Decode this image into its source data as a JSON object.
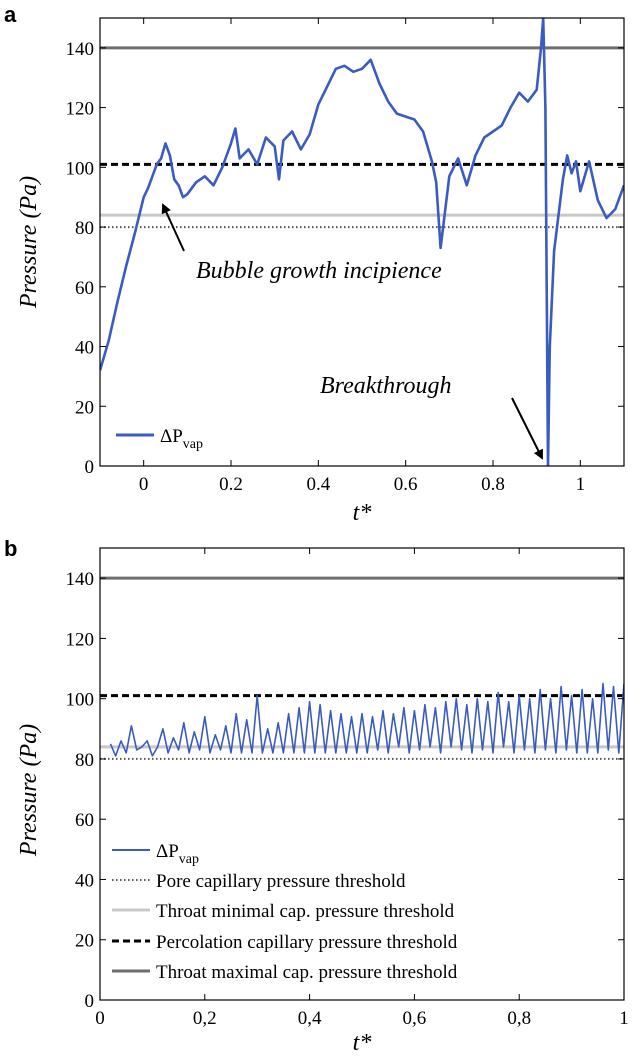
{
  "colors": {
    "series": "#3a5bbf",
    "pore": "#555555",
    "throat_min": "#c8c8c8",
    "percolation": "#000000",
    "throat_max": "#6e6e6e"
  },
  "chart_data": [
    {
      "panel": "a",
      "type": "line",
      "xlabel": "t*",
      "ylabel": "Pressure (Pa)",
      "xlim": [
        -0.1,
        1.1
      ],
      "ylim": [
        0,
        150
      ],
      "xticks": [
        0,
        0.2,
        0.4,
        0.6,
        0.8,
        1
      ],
      "xtick_labels": [
        "0",
        "0.2",
        "0.4",
        "0.6",
        "0.8",
        "1"
      ],
      "yticks": [
        0,
        20,
        40,
        60,
        80,
        100,
        120,
        140
      ],
      "ytick_labels": [
        "0",
        "20",
        "40",
        "60",
        "80",
        "100",
        "120",
        "140"
      ],
      "thresholds": {
        "pore": 80,
        "throat_min": 84,
        "percolation": 101,
        "throat_max": 140
      },
      "series": [
        {
          "name": "ΔP_vap",
          "x": [
            -0.1,
            -0.08,
            -0.06,
            -0.04,
            -0.02,
            0,
            0.01,
            0.02,
            0.03,
            0.04,
            0.05,
            0.06,
            0.07,
            0.08,
            0.09,
            0.1,
            0.12,
            0.14,
            0.16,
            0.18,
            0.2,
            0.21,
            0.22,
            0.24,
            0.26,
            0.28,
            0.3,
            0.31,
            0.32,
            0.34,
            0.36,
            0.38,
            0.4,
            0.42,
            0.44,
            0.46,
            0.48,
            0.5,
            0.52,
            0.54,
            0.56,
            0.58,
            0.6,
            0.62,
            0.64,
            0.66,
            0.67,
            0.68,
            0.7,
            0.72,
            0.74,
            0.76,
            0.78,
            0.8,
            0.82,
            0.84,
            0.86,
            0.88,
            0.9,
            0.91,
            0.915,
            0.92,
            0.923,
            0.926,
            0.93,
            0.94,
            0.95,
            0.96,
            0.97,
            0.98,
            0.99,
            1.0,
            1.02,
            1.04,
            1.06,
            1.08,
            1.1
          ],
          "y": [
            32,
            42,
            55,
            67,
            78,
            90,
            93,
            97,
            101,
            103,
            108,
            104,
            96,
            94,
            90,
            91,
            95,
            97,
            94,
            100,
            108,
            113,
            103,
            106,
            101,
            110,
            107,
            96,
            109,
            112,
            106,
            111,
            121,
            127,
            133,
            134,
            132,
            133,
            136,
            128,
            122,
            118,
            117,
            116,
            112,
            102,
            95,
            73,
            97,
            103,
            94,
            104,
            110,
            112,
            114,
            120,
            125,
            122,
            126,
            140,
            150,
            120,
            60,
            0,
            40,
            72,
            84,
            96,
            104,
            98,
            102,
            92,
            102,
            89,
            83,
            86,
            94
          ]
        }
      ],
      "annotations": [
        {
          "text": "Bubble growth incipience",
          "x": 0.3,
          "y": 66,
          "arrow_to": [
            0.02,
            90
          ]
        },
        {
          "text": "Breakthrough",
          "x": 0.7,
          "y": 26,
          "arrow_to": [
            0.92,
            2
          ]
        }
      ],
      "legend": {
        "position": "bottom-left",
        "entries": [
          "ΔP_vap"
        ]
      }
    },
    {
      "panel": "b",
      "type": "line",
      "xlabel": "t*",
      "ylabel": "Pressure (Pa)",
      "xlim": [
        0,
        1
      ],
      "ylim": [
        0,
        150
      ],
      "xticks": [
        0,
        0.2,
        0.4,
        0.6,
        0.8,
        1
      ],
      "xtick_labels": [
        "0",
        "0,2",
        "0,4",
        "0,6",
        "0,8",
        "1"
      ],
      "yticks": [
        0,
        20,
        40,
        60,
        80,
        100,
        120,
        140
      ],
      "ytick_labels": [
        "0",
        "20",
        "40",
        "60",
        "80",
        "100",
        "120",
        "140"
      ],
      "thresholds": {
        "pore": 80,
        "throat_min": 84,
        "percolation": 101,
        "throat_max": 140
      },
      "series": [
        {
          "name": "ΔP_vap",
          "x": [
            0.02,
            0.03,
            0.04,
            0.05,
            0.06,
            0.07,
            0.08,
            0.09,
            0.1,
            0.11,
            0.12,
            0.13,
            0.14,
            0.15,
            0.16,
            0.17,
            0.18,
            0.19,
            0.2,
            0.21,
            0.22,
            0.23,
            0.24,
            0.25,
            0.26,
            0.27,
            0.28,
            0.29,
            0.3,
            0.31,
            0.32,
            0.33,
            0.34,
            0.35,
            0.36,
            0.37,
            0.38,
            0.39,
            0.4,
            0.41,
            0.42,
            0.43,
            0.44,
            0.45,
            0.46,
            0.47,
            0.48,
            0.49,
            0.5,
            0.51,
            0.52,
            0.53,
            0.54,
            0.55,
            0.56,
            0.57,
            0.58,
            0.59,
            0.6,
            0.61,
            0.62,
            0.63,
            0.64,
            0.65,
            0.66,
            0.67,
            0.68,
            0.69,
            0.7,
            0.71,
            0.72,
            0.73,
            0.74,
            0.75,
            0.76,
            0.77,
            0.78,
            0.79,
            0.8,
            0.81,
            0.82,
            0.83,
            0.84,
            0.85,
            0.86,
            0.87,
            0.88,
            0.89,
            0.9,
            0.91,
            0.92,
            0.93,
            0.94,
            0.95,
            0.96,
            0.97,
            0.98,
            0.99,
            1.0
          ],
          "y": [
            85,
            81,
            86,
            82,
            91,
            83,
            84,
            86,
            81,
            84,
            90,
            82,
            87,
            83,
            92,
            82,
            89,
            83,
            94,
            82,
            88,
            83,
            91,
            82,
            95,
            82,
            93,
            82,
            101,
            82,
            90,
            82,
            92,
            82,
            95,
            82,
            97,
            82,
            99,
            82,
            98,
            82,
            96,
            82,
            95,
            82,
            94,
            82,
            95,
            82,
            94,
            83,
            96,
            82,
            95,
            84,
            97,
            82,
            96,
            83,
            98,
            84,
            97,
            82,
            99,
            84,
            100,
            83,
            98,
            82,
            100,
            83,
            99,
            82,
            102,
            84,
            99,
            82,
            101,
            83,
            100,
            82,
            103,
            83,
            100,
            82,
            104,
            83,
            101,
            82,
            103,
            82,
            100,
            82,
            105,
            83,
            104,
            82,
            105
          ]
        }
      ],
      "legend": {
        "position": "bottom-left",
        "entries": [
          "ΔP_vap",
          "Pore capillary pressure threshold",
          "Throat minimal cap. pressure threshold",
          "Percolation capillary pressure threshold",
          "Throat maximal cap. pressure threshold"
        ]
      }
    }
  ],
  "panels": {
    "a": {
      "label": "a",
      "xlabel": "t*",
      "ylabel": "Pressure (Pa)",
      "annotation1": "Bubble growth incipience",
      "annotation2": "Breakthrough",
      "legend_main": "ΔP",
      "legend_sub": "vap"
    },
    "b": {
      "label": "b",
      "xlabel": "t*",
      "ylabel": "Pressure (Pa)",
      "legend_main": "ΔP",
      "legend_sub": "vap",
      "legend_pore": "Pore capillary pressure threshold",
      "legend_throat_min": "Throat minimal cap. pressure threshold",
      "legend_percolation": "Percolation capillary pressure threshold",
      "legend_throat_max": "Throat maximal cap. pressure threshold"
    }
  }
}
